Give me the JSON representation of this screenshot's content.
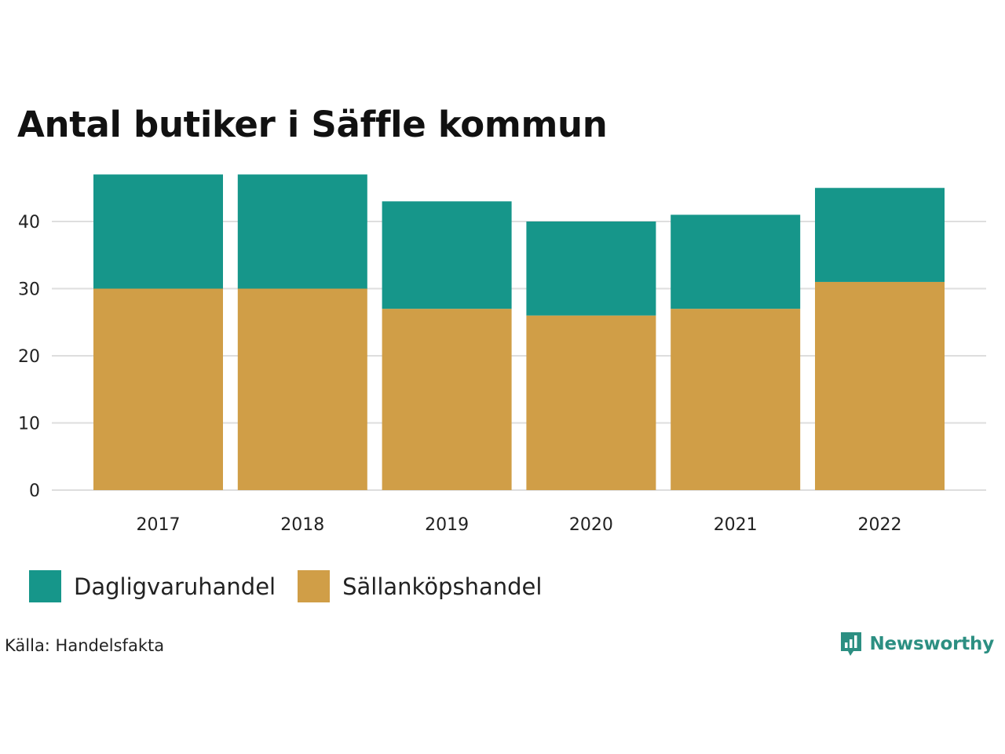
{
  "chart_data": {
    "type": "bar",
    "stacked": true,
    "title": "Antal butiker i Säffle kommun",
    "categories": [
      "2017",
      "2018",
      "2019",
      "2020",
      "2021",
      "2022"
    ],
    "series": [
      {
        "name": "Sällanköpshandel",
        "color": "#d09e47",
        "values": [
          30,
          30,
          27,
          26,
          27,
          31
        ]
      },
      {
        "name": "Dagligvaruhandel",
        "color": "#16968a",
        "values": [
          17,
          17,
          16,
          14,
          14,
          14
        ]
      }
    ],
    "yticks": [
      0,
      10,
      20,
      30,
      40
    ],
    "ylim": [
      0,
      47
    ],
    "grid": true,
    "xlabel": "",
    "ylabel": "",
    "legend": [
      {
        "name": "Dagligvaruhandel",
        "color": "#16968a"
      },
      {
        "name": "Sällanköpshandel",
        "color": "#d09e47"
      }
    ],
    "legend_position": "bottom-left"
  },
  "source": "Källa: Handelsfakta",
  "brand": {
    "name": "Newsworthy",
    "icon": "bar-chart-speech-bubble-icon",
    "color": "#2c8f82"
  }
}
